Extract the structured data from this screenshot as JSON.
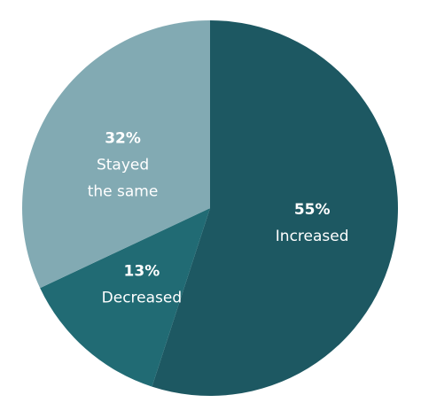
{
  "chart_data": {
    "type": "pie",
    "categories": [
      "Increased",
      "Decreased",
      "Stayed the same"
    ],
    "values": [
      55,
      13,
      32
    ],
    "value_labels": [
      "55%",
      "13%",
      "32%"
    ],
    "colors": [
      "#1d5862",
      "#216b74",
      "#82aab3"
    ]
  }
}
